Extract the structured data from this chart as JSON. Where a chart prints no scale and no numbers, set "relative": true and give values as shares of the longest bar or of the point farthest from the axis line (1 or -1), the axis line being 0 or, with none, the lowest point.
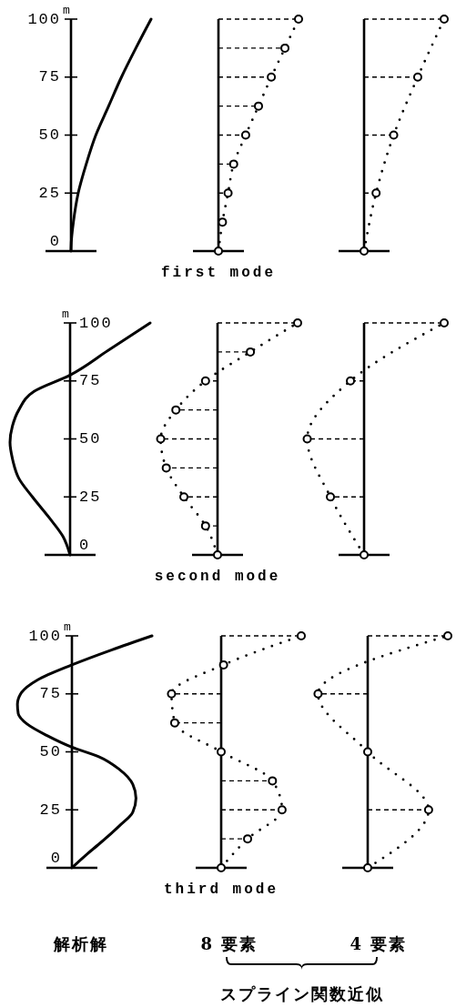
{
  "chart_data": [
    {
      "type": "line",
      "orientation": "horizontal",
      "relative": true,
      "ylim": [
        0,
        100
      ],
      "yticks": [
        0,
        25,
        50,
        75,
        100
      ],
      "tick_labels": "y",
      "ylabel": "m",
      "color": "#000000",
      "x": [
        0,
        5,
        12.5,
        25,
        37.5,
        50,
        62.5,
        75,
        87.5,
        100
      ],
      "values": [
        0,
        0.006,
        0.03,
        0.09,
        0.19,
        0.31,
        0.47,
        0.63,
        0.81,
        1
      ]
    },
    {
      "type": "line",
      "orientation": "horizontal",
      "relative": true,
      "ylim": [
        0,
        100
      ],
      "tick_labels": false,
      "xlabel": "first mode",
      "series": [
        {
          "line_style": "dotted",
          "color": "#000000",
          "x": [
            0,
            12.5,
            25,
            37.5,
            50,
            62.5,
            75,
            87.5,
            100
          ],
          "values": [
            0,
            0.05,
            0.12,
            0.19,
            0.34,
            0.5,
            0.66,
            0.83,
            1
          ]
        },
        {
          "type": "lollipop",
          "line_style": "dashed",
          "marker": "circle",
          "color": "#000000",
          "x": [
            0,
            12.5,
            25,
            37.5,
            50,
            62.5,
            75,
            87.5,
            100
          ],
          "values": [
            0,
            0.05,
            0.12,
            0.19,
            0.34,
            0.5,
            0.66,
            0.83,
            1
          ]
        }
      ]
    },
    {
      "type": "line",
      "orientation": "horizontal",
      "relative": true,
      "ylim": [
        0,
        100
      ],
      "tick_labels": false,
      "series": [
        {
          "line_style": "dotted",
          "color": "#000000",
          "x": [
            0,
            25,
            50,
            75,
            100
          ],
          "values": [
            0,
            0.15,
            0.37,
            0.67,
            1
          ]
        },
        {
          "type": "lollipop",
          "line_style": "dashed",
          "marker": "circle",
          "color": "#000000",
          "x": [
            0,
            25,
            50,
            75,
            100
          ],
          "values": [
            0,
            0.15,
            0.37,
            0.67,
            1
          ]
        }
      ]
    },
    {
      "type": "line",
      "orientation": "horizontal",
      "relative": true,
      "ylim": [
        0,
        100
      ],
      "yticks": [
        0,
        25,
        50,
        75,
        100
      ],
      "tick_labels": "y",
      "ylabel": "m",
      "color": "#000000",
      "x": [
        0,
        8,
        16,
        25,
        33,
        41.5,
        48.5,
        55.5,
        62.5,
        70.5,
        77.5,
        88,
        100
      ],
      "values": [
        0,
        -0.09,
        -0.26,
        -0.47,
        -0.64,
        -0.72,
        -0.75,
        -0.72,
        -0.64,
        -0.45,
        0,
        0.47,
        1
      ]
    },
    {
      "type": "line",
      "orientation": "horizontal",
      "relative": true,
      "ylim": [
        0,
        100
      ],
      "tick_labels": false,
      "xlabel": "second mode",
      "series": [
        {
          "line_style": "dotted",
          "color": "#000000",
          "x": [
            0,
            12.5,
            25,
            37.5,
            50,
            62.5,
            75,
            87.5,
            100
          ],
          "values": [
            0,
            -0.15,
            -0.42,
            -0.64,
            -0.71,
            -0.52,
            -0.15,
            0.41,
            1
          ]
        },
        {
          "type": "lollipop",
          "line_style": "dashed",
          "marker": "circle",
          "color": "#000000",
          "x": [
            0,
            12.5,
            25,
            37.5,
            50,
            62.5,
            75,
            87.5,
            100
          ],
          "values": [
            0,
            -0.15,
            -0.42,
            -0.64,
            -0.71,
            -0.52,
            -0.15,
            0.41,
            1
          ]
        }
      ]
    },
    {
      "type": "line",
      "orientation": "horizontal",
      "relative": true,
      "ylim": [
        0,
        100
      ],
      "tick_labels": false,
      "series": [
        {
          "line_style": "dotted",
          "color": "#000000",
          "x": [
            0,
            25,
            50,
            75,
            100
          ],
          "values": [
            0,
            -0.42,
            -0.71,
            -0.17,
            1
          ]
        },
        {
          "type": "lollipop",
          "line_style": "dashed",
          "marker": "circle",
          "color": "#000000",
          "x": [
            0,
            25,
            50,
            75,
            100
          ],
          "values": [
            0,
            -0.42,
            -0.71,
            -0.17,
            1
          ]
        }
      ]
    },
    {
      "type": "line",
      "orientation": "horizontal",
      "relative": true,
      "ylim": [
        0,
        100
      ],
      "yticks": [
        0,
        25,
        50,
        75,
        100
      ],
      "tick_labels": "y",
      "ylabel": "m",
      "annotations": [
        "解析解"
      ],
      "color": "#000000",
      "x": [
        0,
        6.25,
        10,
        18,
        24,
        30,
        36,
        42.5,
        48,
        52,
        57,
        62,
        66.5,
        70.5,
        75.5,
        81,
        87.5,
        94,
        100
      ],
      "values": [
        0,
        0.2,
        0.33,
        0.59,
        0.76,
        0.8,
        0.76,
        0.59,
        0.33,
        0,
        -0.31,
        -0.56,
        -0.67,
        -0.68,
        -0.63,
        -0.43,
        0,
        0.5,
        1
      ]
    },
    {
      "type": "line",
      "orientation": "horizontal",
      "relative": true,
      "ylim": [
        0,
        100
      ],
      "tick_labels": false,
      "xlabel": "third mode",
      "annotations": [
        "8 要素",
        "スプライン関数近似"
      ],
      "series": [
        {
          "line_style": "dotted",
          "color": "#000000",
          "x": [
            0,
            12.5,
            25,
            37.5,
            50,
            62.5,
            75,
            87.5,
            100
          ],
          "values": [
            0,
            0.33,
            0.76,
            0.64,
            0,
            -0.58,
            -0.62,
            0.03,
            1
          ]
        },
        {
          "type": "lollipop",
          "line_style": "dashed",
          "marker": "circle",
          "color": "#000000",
          "x": [
            0,
            12.5,
            25,
            37.5,
            50,
            62.5,
            75,
            87.5,
            100
          ],
          "values": [
            0,
            0.33,
            0.76,
            0.64,
            0,
            -0.58,
            -0.62,
            0.03,
            1
          ]
        }
      ]
    },
    {
      "type": "line",
      "orientation": "horizontal",
      "relative": true,
      "ylim": [
        0,
        100
      ],
      "tick_labels": false,
      "annotations": [
        "4 要素"
      ],
      "series": [
        {
          "line_style": "dotted",
          "color": "#000000",
          "x": [
            0,
            25,
            50,
            75,
            100
          ],
          "values": [
            0,
            0.76,
            0,
            -0.62,
            1
          ]
        },
        {
          "type": "lollipop",
          "line_style": "dashed",
          "marker": "circle",
          "color": "#000000",
          "x": [
            0,
            25,
            50,
            75,
            100
          ],
          "values": [
            0,
            0.76,
            0,
            -0.62,
            1
          ]
        }
      ]
    }
  ]
}
